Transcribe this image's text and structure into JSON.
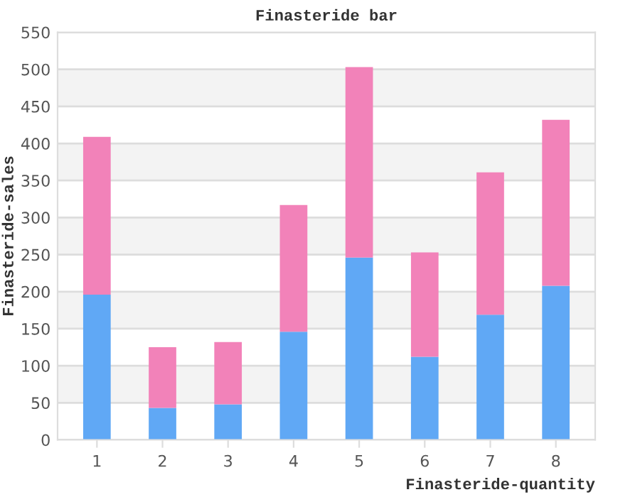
{
  "chart_data": {
    "type": "bar",
    "title": "Finasteride bar",
    "xlabel": "Finasteride-quantity",
    "ylabel": "Finasteride-sales",
    "categories": [
      "1",
      "2",
      "3",
      "4",
      "5",
      "6",
      "7",
      "8"
    ],
    "stacked": true,
    "series": [
      {
        "color": "#60a8f5",
        "values": [
          196,
          43,
          48,
          146,
          246,
          112,
          169,
          208
        ]
      },
      {
        "color": "#f282b9",
        "values": [
          213,
          82,
          84,
          171,
          257,
          141,
          192,
          224
        ]
      }
    ],
    "ylim": [
      0,
      550
    ],
    "yticks": [
      0,
      50,
      100,
      150,
      200,
      250,
      300,
      350,
      400,
      450,
      500,
      550
    ],
    "grid": "y",
    "bands": [
      {
        "axis": "y",
        "from": 50,
        "to": 100,
        "color": "#f3f3f3"
      },
      {
        "axis": "y",
        "from": 150,
        "to": 200,
        "color": "#f3f3f3"
      },
      {
        "axis": "y",
        "from": 250,
        "to": 300,
        "color": "#f3f3f3"
      },
      {
        "axis": "y",
        "from": 350,
        "to": 400,
        "color": "#f3f3f3"
      },
      {
        "axis": "y",
        "from": 450,
        "to": 500,
        "color": "#f3f3f3"
      }
    ]
  }
}
